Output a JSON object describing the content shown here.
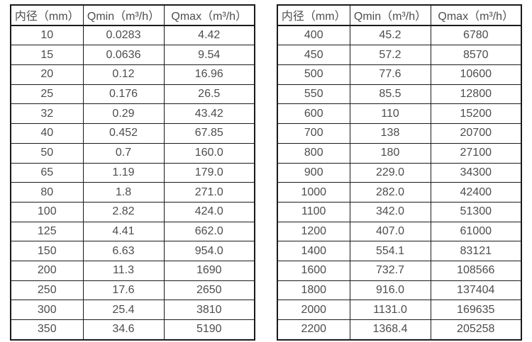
{
  "colors": {
    "background": "#ffffff",
    "border": "#1a1a1a",
    "text": "#4d4d4d"
  },
  "chart_data": [
    {
      "type": "table",
      "name": "small-diameter-flow-table",
      "columns": [
        "内径（mm）",
        "Qmin（m³/h）",
        "Qmax（m³/h）"
      ],
      "rows": [
        [
          "10",
          "0.0283",
          "4.42"
        ],
        [
          "15",
          "0.0636",
          "9.54"
        ],
        [
          "20",
          "0.12",
          "16.96"
        ],
        [
          "25",
          "0.176",
          "26.5"
        ],
        [
          "32",
          "0.29",
          "43.42"
        ],
        [
          "40",
          "0.452",
          "67.85"
        ],
        [
          "50",
          "0.7",
          "160.0"
        ],
        [
          "65",
          "1.19",
          "179.0"
        ],
        [
          "80",
          "1.8",
          "271.0"
        ],
        [
          "100",
          "2.82",
          "424.0"
        ],
        [
          "125",
          "4.41",
          "662.0"
        ],
        [
          "150",
          "6.63",
          "954.0"
        ],
        [
          "200",
          "11.3",
          "1690"
        ],
        [
          "250",
          "17.6",
          "2650"
        ],
        [
          "300",
          "25.4",
          "3810"
        ],
        [
          "350",
          "34.6",
          "5190"
        ]
      ]
    },
    {
      "type": "table",
      "name": "large-diameter-flow-table",
      "columns": [
        "内径（mm）",
        "Qmin（m³/h）",
        "Qmax（m³/h）"
      ],
      "rows": [
        [
          "400",
          "45.2",
          "6780"
        ],
        [
          "450",
          "57.2",
          "8570"
        ],
        [
          "500",
          "77.6",
          "10600"
        ],
        [
          "550",
          "85.5",
          "12800"
        ],
        [
          "600",
          "110",
          "15200"
        ],
        [
          "700",
          "138",
          "20700"
        ],
        [
          "800",
          "180",
          "27100"
        ],
        [
          "900",
          "229.0",
          "34300"
        ],
        [
          "1000",
          "282.0",
          "42400"
        ],
        [
          "1100",
          "342.0",
          "51300"
        ],
        [
          "1200",
          "407.0",
          "61000"
        ],
        [
          "1400",
          "554.1",
          "83121"
        ],
        [
          "1600",
          "732.7",
          "108566"
        ],
        [
          "1800",
          "916.0",
          "137404"
        ],
        [
          "2000",
          "1131.0",
          "169635"
        ],
        [
          "2200",
          "1368.4",
          "205258"
        ]
      ]
    }
  ]
}
